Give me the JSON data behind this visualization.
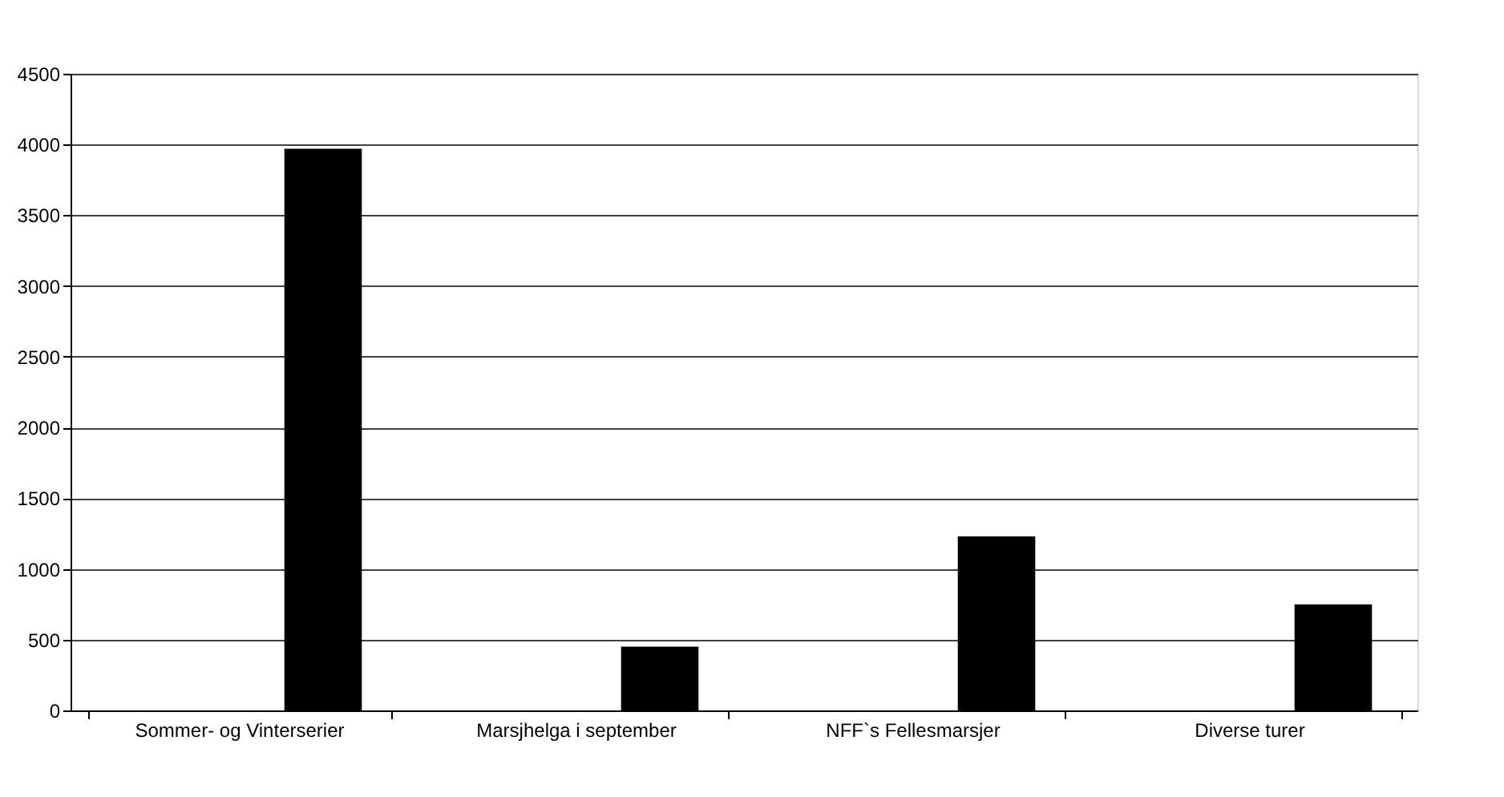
{
  "chart_data": {
    "type": "bar",
    "categories": [
      "Sommer- og Vinterserier",
      "Marsjhelga i september",
      "NFF`s Fellesmarsjer",
      "Diverse turer"
    ],
    "values": [
      3970,
      450,
      1230,
      750
    ],
    "color": "#000000",
    "ylim": [
      0,
      4500
    ],
    "yticks": [
      0,
      500,
      1000,
      1500,
      2000,
      2500,
      3000,
      3500,
      4000,
      4500
    ],
    "grid": "y"
  }
}
